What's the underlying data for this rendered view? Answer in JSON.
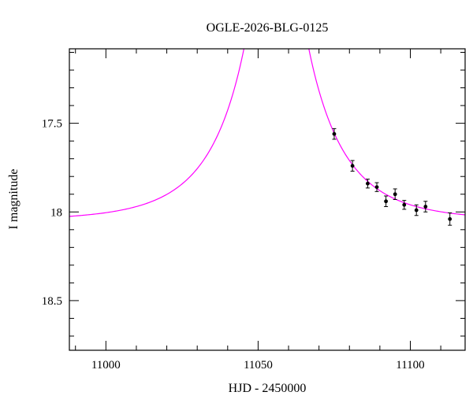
{
  "chart_data": {
    "type": "scatter",
    "title": "OGLE-2026-BLG-0125",
    "xlabel": "HJD - 2450000",
    "ylabel": "I magnitude",
    "xlim": [
      10988,
      11118
    ],
    "ylim": [
      17.08,
      18.78
    ],
    "y_inverted": true,
    "grid": false,
    "frame": "box-with-inward-ticks",
    "x_major_ticks": [
      11000,
      11050,
      11100
    ],
    "x_minor_step": 10,
    "y_major_ticks": [
      17.5,
      18,
      18.5
    ],
    "y_minor_step": 0.1,
    "model_curve": {
      "name": "paczynski-microlensing-fit",
      "color": "#ff00ff",
      "t0": 11056,
      "tE": 25,
      "u0": 0.1,
      "baseline_mag": 18.05
    },
    "points": {
      "name": "I-band-photometry",
      "color": "#000000",
      "x": [
        11075,
        11081,
        11086,
        11089,
        11092,
        11095,
        11098,
        11102,
        11105,
        11113
      ],
      "mag": [
        17.56,
        17.74,
        17.84,
        17.86,
        17.94,
        17.9,
        17.96,
        17.99,
        17.97,
        18.04
      ],
      "err": [
        0.03,
        0.03,
        0.025,
        0.025,
        0.03,
        0.03,
        0.025,
        0.03,
        0.03,
        0.035
      ]
    }
  }
}
